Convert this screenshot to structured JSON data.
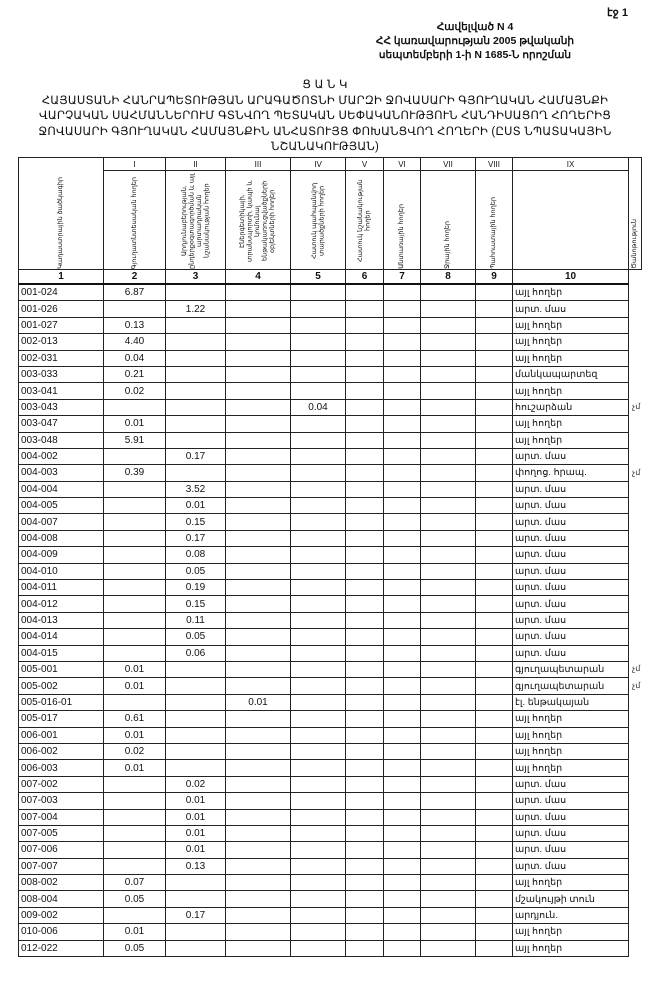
{
  "page_number": "էջ 1",
  "annex": [
    "Հավելված N 4",
    "ՀՀ կառավարության 2005 թվականի",
    "սեպտեմբերի 1-ի N 1685-Ն որոշման"
  ],
  "title": [
    "Ց Ա Ն Կ",
    "ՀԱՅԱՍՏԱՆԻ ՀԱՆՐԱՊԵՏՈՒԹՅԱՆ ԱՐԱԳԱԾՈՏՆԻ ՄԱՐԶԻ ՋՈՎԱՍԱՐԻ ԳՅՈՒՂԱԿԱՆ ՀԱՄԱՅՆՔԻ",
    "ՎԱՐՉԱԿԱՆ ՍԱՀՄԱՆՆԵՐՈՒՄ ԳՏՆՎՈՂ ՊԵՏԱԿԱՆ ՍԵՓԱԿԱՆՈՒԹՅՈՒՆ ՀԱՆԴԻՍԱՑՈՂ ՀՈՂԵՐԻՑ",
    "ՋՈՎԱՍԱՐԻ ԳՅՈՒՂԱԿԱՆ ՀԱՄԱՅՆՔԻՆ ԱՆՀԱՏՈՒՅՑ ՓՈԽԱՆՑՎՈՂ ՀՈՂԵՐԻ (ԸՍՏ ՆՊԱՏԱԿԱՅԻՆ",
    "ՆՇԱՆԱԿՈՒԹՅԱՆ)"
  ],
  "table": {
    "roman": [
      "",
      "I",
      "II",
      "III",
      "IV",
      "V",
      "VI",
      "VII",
      "VIII",
      "IX",
      ""
    ],
    "headers": [
      "Կադաստրային ծածկագիր",
      "Գյուղատնտեսական հողեր",
      "Արդյունաբերության, ընդերքօգտագործման և այլ արտադրական նշանակության հողեր",
      "Էներգետիկայի, տրանսպորտի, կապի և կոմունալ ենթակառուցվածքների օբյեկտների հողեր",
      "Հատուկ պահպանվող տարածքների հողեր",
      "Հատուկ նշանակության հողեր",
      "Անտառային հողեր",
      "Ջրային հողեր",
      "Պահուստային հողեր",
      "Ծանոթություն"
    ],
    "numbers": [
      "1",
      "2",
      "3",
      "4",
      "5",
      "6",
      "7",
      "8",
      "9",
      "10"
    ],
    "rows": [
      [
        "001-024",
        "6.87",
        "",
        "",
        "",
        "",
        "",
        "",
        "",
        "այլ հողեր",
        ""
      ],
      [
        "001-026",
        "",
        "1.22",
        "",
        "",
        "",
        "",
        "",
        "",
        "արտ. մաս",
        ""
      ],
      [
        "001-027",
        "0.13",
        "",
        "",
        "",
        "",
        "",
        "",
        "",
        "այլ հողեր",
        ""
      ],
      [
        "002-013",
        "4.40",
        "",
        "",
        "",
        "",
        "",
        "",
        "",
        "այլ հողեր",
        ""
      ],
      [
        "002-031",
        "0.04",
        "",
        "",
        "",
        "",
        "",
        "",
        "",
        "այլ հողեր",
        ""
      ],
      [
        "003-033",
        "0.21",
        "",
        "",
        "",
        "",
        "",
        "",
        "",
        "մանկապարտեզ",
        ""
      ],
      [
        "003-041",
        "0.02",
        "",
        "",
        "",
        "",
        "",
        "",
        "",
        "այլ հողեր",
        ""
      ],
      [
        "003-043",
        "",
        "",
        "",
        "0.04",
        "",
        "",
        "",
        "",
        "հուշարձան",
        "չմ"
      ],
      [
        "003-047",
        "0.01",
        "",
        "",
        "",
        "",
        "",
        "",
        "",
        "այլ հողեր",
        ""
      ],
      [
        "003-048",
        "5.91",
        "",
        "",
        "",
        "",
        "",
        "",
        "",
        "այլ հողեր",
        ""
      ],
      [
        "004-002",
        "",
        "0.17",
        "",
        "",
        "",
        "",
        "",
        "",
        "արտ. մաս",
        ""
      ],
      [
        "004-003",
        "0.39",
        "",
        "",
        "",
        "",
        "",
        "",
        "",
        "փողոց. հրապ.",
        "չմ"
      ],
      [
        "004-004",
        "",
        "3.52",
        "",
        "",
        "",
        "",
        "",
        "",
        "արտ. մաս",
        ""
      ],
      [
        "004-005",
        "",
        "0.01",
        "",
        "",
        "",
        "",
        "",
        "",
        "արտ. մաս",
        ""
      ],
      [
        "004-007",
        "",
        "0.15",
        "",
        "",
        "",
        "",
        "",
        "",
        "արտ. մաս",
        ""
      ],
      [
        "004-008",
        "",
        "0.17",
        "",
        "",
        "",
        "",
        "",
        "",
        "արտ. մաս",
        ""
      ],
      [
        "004-009",
        "",
        "0.08",
        "",
        "",
        "",
        "",
        "",
        "",
        "արտ. մաս",
        ""
      ],
      [
        "004-010",
        "",
        "0.05",
        "",
        "",
        "",
        "",
        "",
        "",
        "արտ. մաս",
        ""
      ],
      [
        "004-011",
        "",
        "0.19",
        "",
        "",
        "",
        "",
        "",
        "",
        "արտ. մաս",
        ""
      ],
      [
        "004-012",
        "",
        "0.15",
        "",
        "",
        "",
        "",
        "",
        "",
        "արտ. մաս",
        ""
      ],
      [
        "004-013",
        "",
        "0.11",
        "",
        "",
        "",
        "",
        "",
        "",
        "արտ. մաս",
        ""
      ],
      [
        "004-014",
        "",
        "0.05",
        "",
        "",
        "",
        "",
        "",
        "",
        "արտ. մաս",
        ""
      ],
      [
        "004-015",
        "",
        "0.06",
        "",
        "",
        "",
        "",
        "",
        "",
        "արտ. մաս",
        ""
      ],
      [
        "005-001",
        "0.01",
        "",
        "",
        "",
        "",
        "",
        "",
        "",
        "գյուղապետարան",
        "չմ"
      ],
      [
        "005-002",
        "0.01",
        "",
        "",
        "",
        "",
        "",
        "",
        "",
        "գյուղապետարան",
        "չմ"
      ],
      [
        "005-016-01",
        "",
        "",
        "0.01",
        "",
        "",
        "",
        "",
        "",
        "էլ. ենթակայան",
        ""
      ],
      [
        "005-017",
        "0.61",
        "",
        "",
        "",
        "",
        "",
        "",
        "",
        "այլ հողեր",
        ""
      ],
      [
        "006-001",
        "0.01",
        "",
        "",
        "",
        "",
        "",
        "",
        "",
        "այլ հողեր",
        ""
      ],
      [
        "006-002",
        "0.02",
        "",
        "",
        "",
        "",
        "",
        "",
        "",
        "այլ հողեր",
        ""
      ],
      [
        "006-003",
        "0.01",
        "",
        "",
        "",
        "",
        "",
        "",
        "",
        "այլ հողեր",
        ""
      ],
      [
        "007-002",
        "",
        "0.02",
        "",
        "",
        "",
        "",
        "",
        "",
        "արտ. մաս",
        ""
      ],
      [
        "007-003",
        "",
        "0.01",
        "",
        "",
        "",
        "",
        "",
        "",
        "արտ. մաս",
        ""
      ],
      [
        "007-004",
        "",
        "0.01",
        "",
        "",
        "",
        "",
        "",
        "",
        "արտ. մաս",
        ""
      ],
      [
        "007-005",
        "",
        "0.01",
        "",
        "",
        "",
        "",
        "",
        "",
        "արտ. մաս",
        ""
      ],
      [
        "007-006",
        "",
        "0.01",
        "",
        "",
        "",
        "",
        "",
        "",
        "արտ. մաս",
        ""
      ],
      [
        "007-007",
        "",
        "0.13",
        "",
        "",
        "",
        "",
        "",
        "",
        "արտ. մաս",
        ""
      ],
      [
        "008-002",
        "0.07",
        "",
        "",
        "",
        "",
        "",
        "",
        "",
        "այլ հողեր",
        ""
      ],
      [
        "008-004",
        "0.05",
        "",
        "",
        "",
        "",
        "",
        "",
        "",
        "մշակույթի տուն",
        ""
      ],
      [
        "009-002",
        "",
        "0.17",
        "",
        "",
        "",
        "",
        "",
        "",
        "արդյուն.",
        ""
      ],
      [
        "010-006",
        "0.01",
        "",
        "",
        "",
        "",
        "",
        "",
        "",
        "այլ հողեր",
        ""
      ],
      [
        "012-022",
        "0.05",
        "",
        "",
        "",
        "",
        "",
        "",
        "",
        "այլ հողեր",
        ""
      ]
    ]
  }
}
